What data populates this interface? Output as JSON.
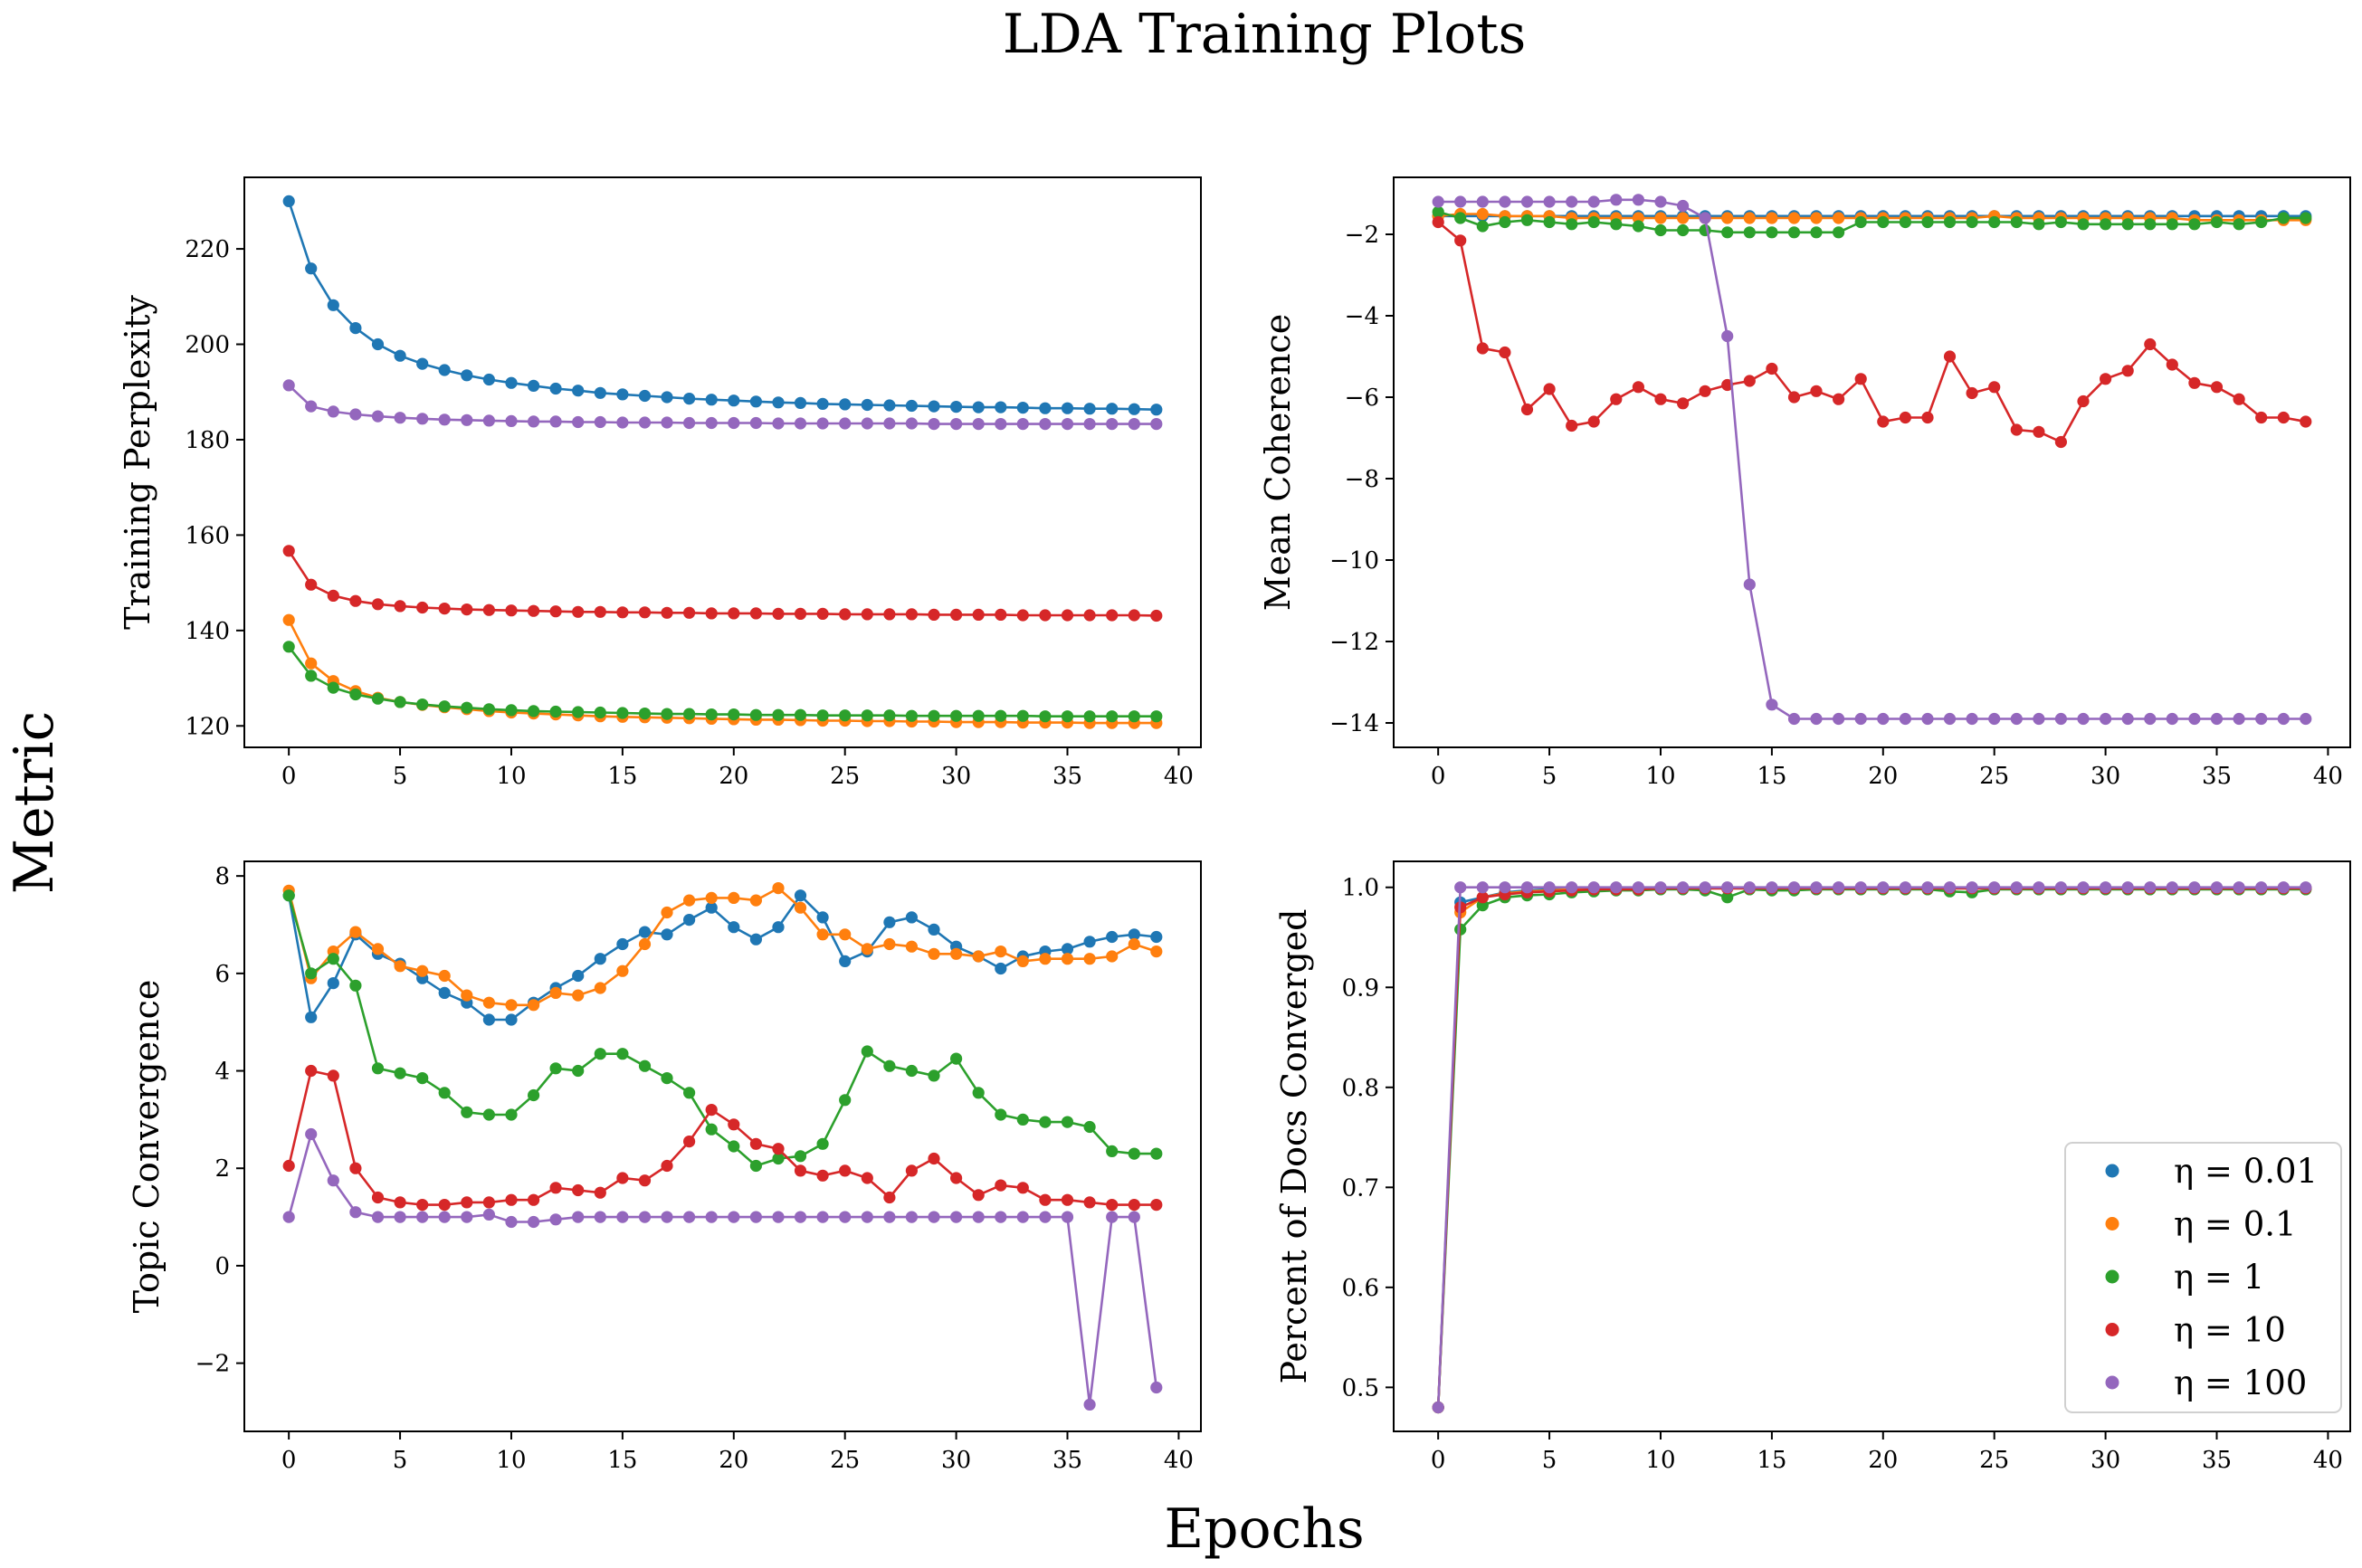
{
  "figure": {
    "title": "LDA Training Plots",
    "supxlabel": "Epochs",
    "supylabel": "Metric"
  },
  "legend_labels": [
    "η = 0.01",
    "η = 0.1",
    "η = 1",
    "η = 10",
    "η = 100"
  ],
  "series_colors": [
    "#1f77b4",
    "#ff7f0e",
    "#2ca02c",
    "#d62728",
    "#9467bd"
  ],
  "chart_data": [
    {
      "type": "line",
      "ylabel": "Training Perplexity",
      "xlim": [
        -2,
        41
      ],
      "ylim": [
        115.5,
        235
      ],
      "xticks": [
        0,
        5,
        10,
        15,
        20,
        25,
        30,
        35,
        40
      ],
      "yticks": [
        120,
        140,
        160,
        180,
        200,
        220
      ],
      "legend": false,
      "series": [
        {
          "values": [
            230.0,
            215.9,
            208.2,
            203.4,
            200.0,
            197.6,
            195.9,
            194.6,
            193.5,
            192.6,
            191.9,
            191.3,
            190.7,
            190.3,
            189.8,
            189.5,
            189.2,
            188.9,
            188.6,
            188.4,
            188.2,
            188.0,
            187.8,
            187.7,
            187.5,
            187.4,
            187.3,
            187.2,
            187.1,
            187.0,
            186.9,
            186.8,
            186.8,
            186.7,
            186.6,
            186.6,
            186.5,
            186.5,
            186.4,
            186.3
          ]
        },
        {
          "values": [
            142.2,
            133.1,
            129.4,
            127.3,
            125.9,
            125.0,
            124.4,
            123.9,
            123.5,
            123.1,
            122.8,
            122.6,
            122.4,
            122.2,
            122.0,
            121.9,
            121.8,
            121.7,
            121.6,
            121.5,
            121.4,
            121.3,
            121.3,
            121.2,
            121.1,
            121.1,
            121.0,
            121.0,
            120.9,
            120.9,
            120.8,
            120.8,
            120.8,
            120.7,
            120.7,
            120.7,
            120.6,
            120.6,
            120.6,
            120.6
          ]
        },
        {
          "values": [
            136.6,
            130.5,
            128.0,
            126.6,
            125.7,
            125.0,
            124.5,
            124.1,
            123.8,
            123.5,
            123.3,
            123.1,
            123.0,
            122.9,
            122.8,
            122.7,
            122.6,
            122.5,
            122.5,
            122.4,
            122.4,
            122.3,
            122.3,
            122.3,
            122.2,
            122.2,
            122.2,
            122.2,
            122.1,
            122.1,
            122.1,
            122.1,
            122.1,
            122.1,
            122.0,
            122.0,
            122.0,
            122.0,
            122.0,
            122.0
          ]
        },
        {
          "values": [
            156.7,
            149.6,
            147.3,
            146.2,
            145.5,
            145.1,
            144.8,
            144.6,
            144.4,
            144.3,
            144.2,
            144.1,
            144.0,
            143.9,
            143.9,
            143.8,
            143.8,
            143.7,
            143.7,
            143.6,
            143.6,
            143.6,
            143.5,
            143.5,
            143.5,
            143.4,
            143.4,
            143.4,
            143.4,
            143.3,
            143.3,
            143.3,
            143.3,
            143.2,
            143.2,
            143.2,
            143.2,
            143.2,
            143.2,
            143.1
          ]
        },
        {
          "values": [
            191.4,
            187.0,
            185.9,
            185.3,
            184.9,
            184.6,
            184.4,
            184.2,
            184.1,
            184.0,
            183.9,
            183.8,
            183.8,
            183.7,
            183.7,
            183.6,
            183.6,
            183.6,
            183.5,
            183.5,
            183.5,
            183.5,
            183.4,
            183.4,
            183.4,
            183.4,
            183.4,
            183.4,
            183.4,
            183.3,
            183.3,
            183.3,
            183.3,
            183.3,
            183.3,
            183.3,
            183.3,
            183.3,
            183.3,
            183.3
          ]
        }
      ]
    },
    {
      "type": "line",
      "ylabel": "Mean Coherence",
      "xlim": [
        -2,
        41
      ],
      "ylim": [
        -14.6,
        -0.6
      ],
      "xticks": [
        0,
        5,
        10,
        15,
        20,
        25,
        30,
        35,
        40
      ],
      "yticks": [
        -14,
        -12,
        -10,
        -8,
        -6,
        -4,
        -2
      ],
      "legend": false,
      "series": [
        {
          "values": [
            -1.55,
            -1.55,
            -1.55,
            -1.55,
            -1.55,
            -1.55,
            -1.55,
            -1.55,
            -1.55,
            -1.55,
            -1.55,
            -1.55,
            -1.55,
            -1.55,
            -1.55,
            -1.55,
            -1.55,
            -1.55,
            -1.55,
            -1.55,
            -1.55,
            -1.55,
            -1.55,
            -1.55,
            -1.55,
            -1.55,
            -1.55,
            -1.55,
            -1.55,
            -1.55,
            -1.55,
            -1.55,
            -1.55,
            -1.55,
            -1.55,
            -1.55,
            -1.55,
            -1.55,
            -1.55,
            -1.55
          ]
        },
        {
          "values": [
            -1.55,
            -1.5,
            -1.5,
            -1.55,
            -1.55,
            -1.55,
            -1.6,
            -1.6,
            -1.6,
            -1.6,
            -1.6,
            -1.6,
            -1.6,
            -1.6,
            -1.6,
            -1.6,
            -1.6,
            -1.6,
            -1.6,
            -1.6,
            -1.6,
            -1.6,
            -1.6,
            -1.6,
            -1.6,
            -1.55,
            -1.6,
            -1.6,
            -1.6,
            -1.6,
            -1.6,
            -1.6,
            -1.6,
            -1.6,
            -1.65,
            -1.65,
            -1.65,
            -1.65,
            -1.65,
            -1.65
          ]
        },
        {
          "values": [
            -1.45,
            -1.6,
            -1.8,
            -1.7,
            -1.65,
            -1.7,
            -1.75,
            -1.7,
            -1.75,
            -1.8,
            -1.9,
            -1.9,
            -1.9,
            -1.95,
            -1.95,
            -1.95,
            -1.95,
            -1.95,
            -1.95,
            -1.7,
            -1.7,
            -1.7,
            -1.7,
            -1.7,
            -1.7,
            -1.7,
            -1.7,
            -1.75,
            -1.7,
            -1.75,
            -1.75,
            -1.75,
            -1.75,
            -1.75,
            -1.75,
            -1.7,
            -1.75,
            -1.7,
            -1.6,
            -1.6
          ]
        },
        {
          "values": [
            -1.7,
            -2.15,
            -4.8,
            -4.9,
            -6.3,
            -5.8,
            -6.7,
            -6.6,
            -6.05,
            -5.75,
            -6.05,
            -6.15,
            -5.85,
            -5.7,
            -5.6,
            -5.3,
            -6.0,
            -5.85,
            -6.05,
            -5.55,
            -6.6,
            -6.5,
            -6.5,
            -5.0,
            -5.9,
            -5.75,
            -6.8,
            -6.85,
            -7.1,
            -6.1,
            -5.55,
            -5.35,
            -4.7,
            -5.2,
            -5.65,
            -5.75,
            -6.05,
            -6.5,
            -6.5,
            -6.6
          ]
        },
        {
          "values": [
            -1.2,
            -1.2,
            -1.2,
            -1.2,
            -1.2,
            -1.2,
            -1.2,
            -1.2,
            -1.15,
            -1.15,
            -1.2,
            -1.3,
            -1.6,
            -4.5,
            -10.6,
            -13.55,
            -13.9,
            -13.9,
            -13.9,
            -13.9,
            -13.9,
            -13.9,
            -13.9,
            -13.9,
            -13.9,
            -13.9,
            -13.9,
            -13.9,
            -13.9,
            -13.9,
            -13.9,
            -13.9,
            -13.9,
            -13.9,
            -13.9,
            -13.9,
            -13.9,
            -13.9,
            -13.9,
            -13.9
          ]
        }
      ]
    },
    {
      "type": "line",
      "ylabel": "Topic Convergence",
      "xlim": [
        -2,
        41
      ],
      "ylim": [
        -3.4,
        8.3
      ],
      "xticks": [
        0,
        5,
        10,
        15,
        20,
        25,
        30,
        35,
        40
      ],
      "yticks": [
        -2,
        0,
        2,
        4,
        6,
        8
      ],
      "legend": false,
      "series": [
        {
          "values": [
            7.6,
            5.1,
            5.8,
            6.8,
            6.4,
            6.2,
            5.9,
            5.6,
            5.4,
            5.05,
            5.05,
            5.4,
            5.7,
            5.95,
            6.3,
            6.6,
            6.85,
            6.8,
            7.1,
            7.35,
            6.95,
            6.7,
            6.95,
            7.6,
            7.15,
            6.25,
            6.45,
            7.05,
            7.15,
            6.9,
            6.55,
            6.35,
            6.1,
            6.35,
            6.45,
            6.5,
            6.65,
            6.75,
            6.8,
            6.75
          ]
        },
        {
          "values": [
            7.7,
            5.9,
            6.45,
            6.85,
            6.5,
            6.15,
            6.05,
            5.95,
            5.55,
            5.4,
            5.35,
            5.35,
            5.6,
            5.55,
            5.7,
            6.05,
            6.6,
            7.25,
            7.5,
            7.55,
            7.55,
            7.5,
            7.75,
            7.35,
            6.8,
            6.8,
            6.5,
            6.6,
            6.55,
            6.4,
            6.4,
            6.35,
            6.45,
            6.25,
            6.3,
            6.3,
            6.3,
            6.35,
            6.6,
            6.45
          ]
        },
        {
          "values": [
            7.6,
            6.0,
            6.3,
            5.75,
            4.05,
            3.95,
            3.85,
            3.55,
            3.15,
            3.1,
            3.1,
            3.5,
            4.05,
            4.0,
            4.35,
            4.35,
            4.1,
            3.85,
            3.55,
            2.8,
            2.45,
            2.05,
            2.2,
            2.25,
            2.5,
            3.4,
            4.4,
            4.1,
            4.0,
            3.9,
            4.25,
            3.55,
            3.1,
            3.0,
            2.95,
            2.95,
            2.85,
            2.35,
            2.3,
            2.3
          ]
        },
        {
          "values": [
            2.05,
            4.0,
            3.9,
            2.0,
            1.4,
            1.3,
            1.25,
            1.25,
            1.3,
            1.3,
            1.35,
            1.35,
            1.6,
            1.55,
            1.5,
            1.8,
            1.75,
            2.05,
            2.55,
            3.2,
            2.9,
            2.5,
            2.4,
            1.95,
            1.85,
            1.95,
            1.8,
            1.4,
            1.95,
            2.2,
            1.8,
            1.45,
            1.65,
            1.6,
            1.35,
            1.35,
            1.3,
            1.25,
            1.25,
            1.25
          ]
        },
        {
          "values": [
            1.0,
            2.7,
            1.75,
            1.1,
            1.0,
            1.0,
            1.0,
            1.0,
            1.0,
            1.05,
            0.9,
            0.9,
            0.95,
            1.0,
            1.0,
            1.0,
            1.0,
            1.0,
            1.0,
            1.0,
            1.0,
            1.0,
            1.0,
            1.0,
            1.0,
            1.0,
            1.0,
            1.0,
            1.0,
            1.0,
            1.0,
            1.0,
            1.0,
            1.0,
            1.0,
            1.0,
            -2.85,
            1.0,
            1.0,
            -2.5
          ]
        }
      ]
    },
    {
      "type": "line",
      "ylabel": "Percent of Docs Converged",
      "xlim": [
        -2,
        41
      ],
      "ylim": [
        0.456,
        1.026
      ],
      "xticks": [
        0,
        5,
        10,
        15,
        20,
        25,
        30,
        35,
        40
      ],
      "yticks": [
        0.5,
        0.6,
        0.7,
        0.8,
        0.9,
        1.0
      ],
      "legend": true,
      "legend_position": "lower right",
      "series": [
        {
          "values": [
            0.48,
            0.985,
            0.99,
            0.995,
            0.997,
            0.998,
            0.998,
            0.998,
            0.999,
            0.998,
            0.999,
            0.999,
            0.999,
            0.999,
            0.999,
            0.999,
            0.999,
            0.999,
            0.999,
            0.999,
            0.999,
            0.999,
            0.999,
            0.999,
            0.999,
            0.999,
            0.999,
            0.999,
            0.999,
            0.999,
            0.999,
            0.999,
            0.999,
            0.999,
            0.999,
            0.999,
            0.999,
            0.999,
            0.999,
            0.999
          ]
        },
        {
          "values": [
            0.48,
            0.975,
            0.99,
            0.994,
            0.996,
            0.997,
            0.998,
            0.998,
            0.998,
            0.999,
            0.999,
            0.999,
            0.999,
            0.999,
            0.999,
            0.999,
            0.999,
            0.999,
            0.999,
            0.999,
            0.999,
            0.999,
            0.999,
            0.999,
            0.999,
            0.999,
            0.999,
            0.999,
            0.999,
            0.999,
            0.999,
            0.999,
            0.999,
            0.999,
            0.999,
            0.999,
            0.999,
            0.999,
            0.999,
            0.999
          ]
        },
        {
          "values": [
            0.48,
            0.958,
            0.982,
            0.99,
            0.992,
            0.993,
            0.995,
            0.996,
            0.997,
            0.997,
            0.998,
            0.998,
            0.997,
            0.99,
            0.998,
            0.997,
            0.997,
            0.998,
            0.998,
            0.998,
            0.998,
            0.998,
            0.998,
            0.996,
            0.995,
            0.998,
            0.998,
            0.998,
            0.998,
            0.998,
            0.998,
            0.998,
            0.998,
            0.998,
            0.998,
            0.998,
            0.998,
            0.998,
            0.998,
            0.998
          ]
        },
        {
          "values": [
            0.48,
            0.98,
            0.99,
            0.993,
            0.995,
            0.996,
            0.997,
            0.998,
            0.998,
            0.998,
            0.999,
            0.999,
            0.999,
            0.999,
            0.999,
            0.999,
            0.999,
            0.999,
            0.999,
            0.999,
            0.999,
            0.999,
            0.999,
            0.999,
            0.999,
            0.999,
            0.999,
            0.999,
            0.999,
            0.999,
            0.999,
            0.999,
            0.999,
            0.999,
            0.999,
            0.999,
            0.999,
            0.999,
            0.999,
            0.999
          ]
        },
        {
          "values": [
            0.48,
            1.0,
            1.0,
            1.0,
            1.0,
            1.0,
            1.0,
            1.0,
            1.0,
            1.0,
            1.0,
            1.0,
            1.0,
            1.0,
            1.0,
            1.0,
            1.0,
            1.0,
            1.0,
            1.0,
            1.0,
            1.0,
            1.0,
            1.0,
            1.0,
            1.0,
            1.0,
            1.0,
            1.0,
            1.0,
            1.0,
            1.0,
            1.0,
            1.0,
            1.0,
            1.0,
            1.0,
            1.0,
            1.0,
            1.0
          ]
        }
      ]
    }
  ]
}
